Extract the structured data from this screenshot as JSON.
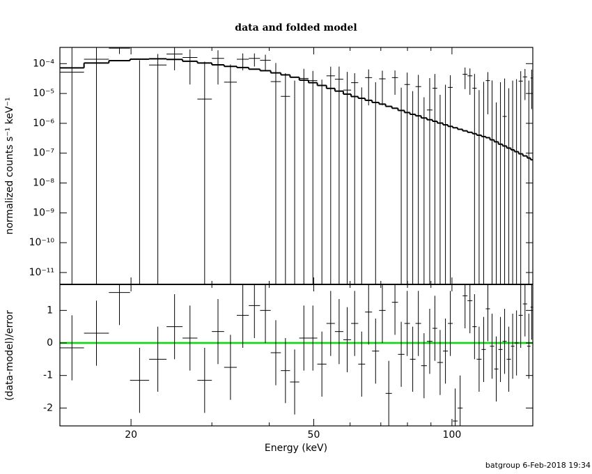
{
  "footer": "batgroup  6-Feb-2018 19:34",
  "chart_data": {
    "type": "errorbar",
    "title": "data and folded model",
    "xlabel": "Energy (keV)",
    "xlog": true,
    "xlim": [
      14,
      150
    ],
    "xticks": [
      20,
      50,
      100
    ],
    "xminor": [
      30,
      40,
      60,
      70,
      80,
      90
    ],
    "bins": [
      14,
      15.8,
      17.9,
      19.9,
      21.9,
      23.9,
      25.9,
      27.9,
      30.0,
      31.9,
      34.0,
      36.1,
      38.2,
      40.3,
      42.4,
      44.4,
      46.5,
      48.7,
      50.9,
      53.3,
      55.6,
      58.0,
      60.3,
      62.5,
      64.7,
      67.0,
      69.4,
      71.7,
      74.0,
      76.3,
      78.8,
      81.0,
      83.3,
      85.7,
      88.2,
      90.7,
      92.9,
      95.6,
      98.0,
      100.4,
      102.9,
      105.5,
      108.1,
      110.8,
      113.2,
      116.0,
      118.5,
      121.0,
      123.6,
      126.2,
      128.9,
      131.6,
      134.4,
      136.8,
      139.7,
      142.7,
      145.8,
      148.3,
      150
    ],
    "top": {
      "ylabel": "normalized counts s⁻¹ keV⁻¹",
      "ylog": true,
      "ylim": [
        4e-12,
        0.00035
      ],
      "yticks": [
        {
          "value": 0.0001,
          "label": "10⁻⁴"
        },
        {
          "value": 1e-05,
          "label": "10⁻⁵"
        },
        {
          "value": 1e-06,
          "label": "10⁻⁶"
        },
        {
          "value": 1e-07,
          "label": "10⁻⁷"
        },
        {
          "value": 1e-08,
          "label": "10⁻⁸"
        },
        {
          "value": 1e-09,
          "label": "10⁻⁹"
        },
        {
          "value": 1e-10,
          "label": "10⁻¹⁰"
        },
        {
          "value": 1e-11,
          "label": "10⁻¹¹"
        }
      ],
      "data": {
        "color": "#000000",
        "values": [
          5.2e-05,
          0.00014,
          0.00033,
          -2e-05,
          9e-05,
          0.00021,
          0.00016,
          6.5e-06,
          0.00015,
          2.4e-05,
          0.00014,
          0.00015,
          0.00013,
          2.5e-05,
          8e-06,
          -1.3e-05,
          3.2e-05,
          2.7e-05,
          -1e-06,
          3.9e-05,
          3e-05,
          1.3e-05,
          2.3e-05,
          -9e-06,
          3.4e-05,
          -1.2e-06,
          3.1e-05,
          -2.7e-05,
          3.4e-05,
          -4.3e-06,
          2e-05,
          -8e-06,
          1.7e-05,
          -1.25e-05,
          2.8e-06,
          1.5e-05,
          -1.1e-05,
          -5.4e-06,
          1.6e-05,
          -4.7e-05,
          -3.9e-05,
          4.4e-05,
          3.9e-05,
          1.5e-05,
          -1.2e-05,
          -5.6e-06,
          2.7e-05,
          -2.7e-06,
          -2e-05,
          -6e-06,
          1.7e-06,
          -1.5e-05,
          -3e-06,
          1.1e-07,
          2.6e-05,
          3.6e-05,
          -3e-06,
          3.3e-05
        ],
        "errors": [
          0.0003,
          0.00028,
          0.00012,
          0.00015,
          0.00012,
          0.00015,
          0.00014,
          0.00011,
          0.00013,
          7e-05,
          8e-05,
          7e-05,
          7e-05,
          8e-05,
          4e-05,
          4e-05,
          3.5e-05,
          3e-05,
          3e-05,
          4e-05,
          5e-05,
          4e-05,
          2.5e-05,
          2.5e-05,
          3e-05,
          2.5e-05,
          2.7e-05,
          2e-05,
          2.5e-05,
          2e-05,
          3e-05,
          2e-05,
          2.5e-05,
          2e-05,
          3e-05,
          3e-05,
          2e-05,
          2.5e-05,
          2.5e-05,
          2e-05,
          2e-05,
          3e-05,
          3e-05,
          3e-05,
          2.5e-05,
          3e-05,
          2.5e-05,
          3e-05,
          2.5e-05,
          3e-05,
          3e-05,
          3e-05,
          3e-05,
          3e-05,
          3e-05,
          3e-05,
          3e-05,
          3e-05
        ]
      },
      "model": {
        "color": "#000000",
        "values": [
          7.2e-05,
          0.000105,
          0.000126,
          0.000141,
          0.000145,
          0.000138,
          0.00012,
          0.000105,
          9.1e-05,
          8.1e-05,
          7.4e-05,
          6.5e-05,
          5.8e-05,
          4.9e-05,
          4.2e-05,
          3.5e-05,
          2.8e-05,
          2.3e-05,
          1.86e-05,
          1.48e-05,
          1.2e-05,
          9.5e-06,
          7.9e-06,
          6.9e-06,
          5.9e-06,
          5e-06,
          4.4e-06,
          3.7e-06,
          3.2e-06,
          2.7e-06,
          2.3e-06,
          2e-06,
          1.78e-06,
          1.51e-06,
          1.32e-06,
          1.17e-06,
          1.02e-06,
          8.9e-07,
          7.9e-07,
          7.1e-07,
          6.3e-07,
          5.6e-07,
          5e-07,
          4.5e-07,
          4e-07,
          3.6e-07,
          3.3e-07,
          2.8e-07,
          2.4e-07,
          2e-07,
          1.74e-07,
          1.48e-07,
          1.29e-07,
          1.12e-07,
          9.5e-08,
          8.1e-08,
          6.9e-08,
          6e-08
        ]
      }
    },
    "bottom": {
      "ylabel": "(data-model)/error",
      "ylim": [
        -2.55,
        1.8
      ],
      "yticks": [
        -2,
        -1,
        0,
        1
      ],
      "zero_line": {
        "value": 0,
        "color": "#00e000"
      },
      "color": "#000000",
      "error": 1,
      "values": [
        -0.15,
        0.3,
        1.55,
        -1.15,
        -0.5,
        0.5,
        0.15,
        -1.15,
        0.35,
        -0.75,
        0.85,
        1.15,
        1.0,
        -0.3,
        -0.85,
        -1.2,
        0.15,
        0.15,
        -0.65,
        0.6,
        0.35,
        0.1,
        0.6,
        -0.65,
        0.95,
        -0.25,
        1.0,
        -1.55,
        1.25,
        -0.35,
        0.6,
        -0.5,
        0.6,
        -0.7,
        0.05,
        0.45,
        -0.6,
        -0.25,
        0.6,
        -2.4,
        -2.0,
        1.45,
        1.3,
        0.5,
        -0.5,
        -0.2,
        1.05,
        -0.1,
        -0.8,
        -0.2,
        0.05,
        -0.5,
        -0.1,
        0.0,
        0.85,
        1.2,
        -0.1,
        1.1
      ]
    }
  }
}
